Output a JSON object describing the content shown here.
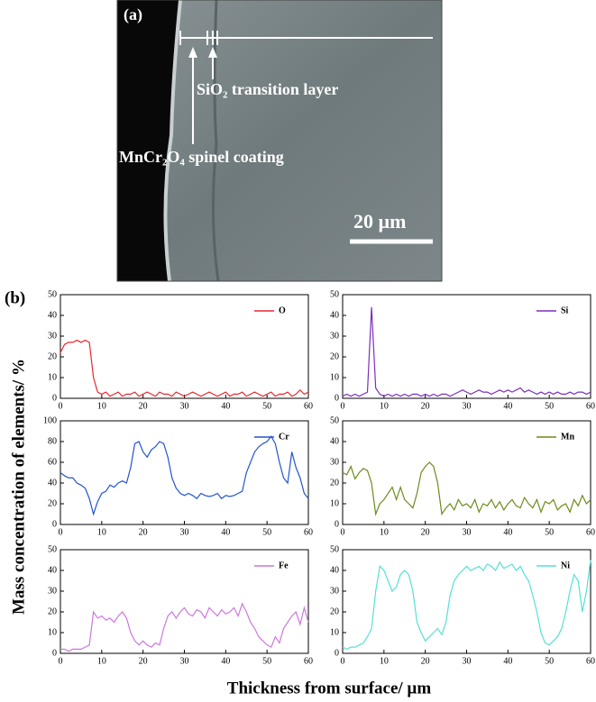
{
  "panel_a": {
    "label": "(a)",
    "layer_label": "SiO₂ transition layer",
    "coating_label": "MnCr₂O₄ spinel coating",
    "scale_bar": "20 µm"
  },
  "panel_b": {
    "label": "(b)",
    "ylabel": "Mass concentration of elements/ %",
    "xlabel": "Thickness from surface/ µm"
  },
  "chart_data": [
    {
      "type": "line",
      "legend": "upper right",
      "xlim": [
        0,
        60
      ],
      "xticks": [
        0,
        10,
        20,
        30,
        40,
        50,
        60
      ],
      "ylim": [
        0,
        50
      ],
      "yticks": [
        0,
        10,
        20,
        30,
        40,
        50
      ],
      "x": [
        0,
        1,
        2,
        3,
        4,
        5,
        6,
        7,
        8,
        9,
        10,
        11,
        12,
        13,
        14,
        15,
        16,
        17,
        18,
        19,
        20,
        21,
        22,
        23,
        24,
        25,
        26,
        27,
        28,
        29,
        30,
        31,
        32,
        33,
        34,
        35,
        36,
        37,
        38,
        39,
        40,
        41,
        42,
        43,
        44,
        45,
        46,
        47,
        48,
        49,
        50,
        51,
        52,
        53,
        54,
        55,
        56,
        57,
        58,
        59,
        60
      ],
      "series": [
        {
          "name": "O",
          "color": "#e8282e",
          "values": [
            22,
            26,
            27,
            27,
            28,
            27,
            28,
            27,
            10,
            3,
            2,
            3,
            1,
            2,
            3,
            1,
            2,
            2,
            3,
            1,
            2,
            3,
            2,
            1,
            3,
            2,
            2,
            1,
            3,
            2,
            1,
            2,
            3,
            2,
            1,
            2,
            3,
            2,
            1,
            2,
            3,
            1,
            2,
            2,
            3,
            1,
            2,
            3,
            2,
            1,
            2,
            3,
            1,
            2,
            2,
            3,
            1,
            2,
            4,
            2,
            3
          ]
        }
      ]
    },
    {
      "type": "line",
      "legend": "upper right",
      "xlim": [
        0,
        60
      ],
      "xticks": [
        0,
        10,
        20,
        30,
        40,
        50,
        60
      ],
      "ylim": [
        0,
        50
      ],
      "yticks": [
        0,
        10,
        20,
        30,
        40,
        50
      ],
      "x": [
        0,
        1,
        2,
        3,
        4,
        5,
        6,
        7,
        8,
        9,
        10,
        11,
        12,
        13,
        14,
        15,
        16,
        17,
        18,
        19,
        20,
        21,
        22,
        23,
        24,
        25,
        26,
        27,
        28,
        29,
        30,
        31,
        32,
        33,
        34,
        35,
        36,
        37,
        38,
        39,
        40,
        41,
        42,
        43,
        44,
        45,
        46,
        47,
        48,
        49,
        50,
        51,
        52,
        53,
        54,
        55,
        56,
        57,
        58,
        59,
        60
      ],
      "series": [
        {
          "name": "Si",
          "color": "#7b2fbf",
          "values": [
            1,
            2,
            1,
            2,
            1,
            2,
            3,
            44,
            5,
            2,
            1,
            2,
            1,
            2,
            1,
            2,
            1,
            2,
            2,
            1,
            2,
            1,
            2,
            1,
            2,
            2,
            1,
            2,
            3,
            4,
            3,
            2,
            3,
            4,
            3,
            3,
            2,
            3,
            4,
            3,
            4,
            3,
            4,
            5,
            3,
            4,
            3,
            2,
            3,
            2,
            3,
            2,
            3,
            2,
            2,
            3,
            2,
            3,
            3,
            2,
            3
          ]
        }
      ]
    },
    {
      "type": "line",
      "legend": "upper right",
      "xlim": [
        0,
        60
      ],
      "xticks": [
        0,
        10,
        20,
        30,
        40,
        50,
        60
      ],
      "ylim": [
        0,
        100
      ],
      "yticks": [
        0,
        20,
        40,
        60,
        80,
        100
      ],
      "x": [
        0,
        1,
        2,
        3,
        4,
        5,
        6,
        7,
        8,
        9,
        10,
        11,
        12,
        13,
        14,
        15,
        16,
        17,
        18,
        19,
        20,
        21,
        22,
        23,
        24,
        25,
        26,
        27,
        28,
        29,
        30,
        31,
        32,
        33,
        34,
        35,
        36,
        37,
        38,
        39,
        40,
        41,
        42,
        43,
        44,
        45,
        46,
        47,
        48,
        49,
        50,
        51,
        52,
        53,
        54,
        55,
        56,
        57,
        58,
        59,
        60
      ],
      "series": [
        {
          "name": "Cr",
          "color": "#2255cc",
          "values": [
            50,
            47,
            45,
            45,
            40,
            38,
            35,
            25,
            10,
            22,
            30,
            32,
            38,
            36,
            40,
            42,
            40,
            55,
            78,
            80,
            70,
            65,
            72,
            75,
            80,
            78,
            65,
            45,
            35,
            30,
            28,
            30,
            28,
            25,
            30,
            28,
            27,
            28,
            30,
            25,
            28,
            27,
            28,
            30,
            32,
            50,
            60,
            70,
            75,
            78,
            80,
            85,
            78,
            60,
            45,
            40,
            70,
            55,
            45,
            30,
            25
          ]
        }
      ]
    },
    {
      "type": "line",
      "legend": "upper right",
      "xlim": [
        0,
        60
      ],
      "xticks": [
        0,
        10,
        20,
        30,
        40,
        50,
        60
      ],
      "ylim": [
        0,
        50
      ],
      "yticks": [
        0,
        10,
        20,
        30,
        40,
        50
      ],
      "x": [
        0,
        1,
        2,
        3,
        4,
        5,
        6,
        7,
        8,
        9,
        10,
        11,
        12,
        13,
        14,
        15,
        16,
        17,
        18,
        19,
        20,
        21,
        22,
        23,
        24,
        25,
        26,
        27,
        28,
        29,
        30,
        31,
        32,
        33,
        34,
        35,
        36,
        37,
        38,
        39,
        40,
        41,
        42,
        43,
        44,
        45,
        46,
        47,
        48,
        49,
        50,
        51,
        52,
        53,
        54,
        55,
        56,
        57,
        58,
        59,
        60
      ],
      "series": [
        {
          "name": "Mn",
          "color": "#6b8c1a",
          "values": [
            25,
            24,
            28,
            22,
            25,
            27,
            26,
            20,
            5,
            10,
            12,
            15,
            18,
            12,
            18,
            12,
            10,
            8,
            15,
            25,
            28,
            30,
            28,
            20,
            5,
            8,
            10,
            7,
            12,
            9,
            10,
            8,
            12,
            6,
            10,
            9,
            12,
            8,
            11,
            7,
            10,
            12,
            9,
            8,
            13,
            10,
            8,
            12,
            6,
            11,
            10,
            12,
            7,
            9,
            10,
            6,
            12,
            9,
            14,
            10,
            12
          ]
        }
      ]
    },
    {
      "type": "line",
      "legend": "upper right",
      "xlim": [
        0,
        60
      ],
      "xticks": [
        0,
        10,
        20,
        30,
        40,
        50,
        60
      ],
      "ylim": [
        0,
        50
      ],
      "yticks": [
        0,
        10,
        20,
        30,
        40,
        50
      ],
      "x": [
        0,
        1,
        2,
        3,
        4,
        5,
        6,
        7,
        8,
        9,
        10,
        11,
        12,
        13,
        14,
        15,
        16,
        17,
        18,
        19,
        20,
        21,
        22,
        23,
        24,
        25,
        26,
        27,
        28,
        29,
        30,
        31,
        32,
        33,
        34,
        35,
        36,
        37,
        38,
        39,
        40,
        41,
        42,
        43,
        44,
        45,
        46,
        47,
        48,
        49,
        50,
        51,
        52,
        53,
        54,
        55,
        56,
        57,
        58,
        59,
        60
      ],
      "series": [
        {
          "name": "Fe",
          "color": "#cc77dd",
          "values": [
            2,
            2,
            1,
            2,
            2,
            2,
            3,
            4,
            20,
            17,
            18,
            16,
            17,
            15,
            18,
            20,
            17,
            10,
            6,
            4,
            6,
            4,
            3,
            5,
            4,
            12,
            18,
            20,
            17,
            20,
            22,
            19,
            18,
            21,
            20,
            17,
            22,
            20,
            18,
            21,
            19,
            20,
            22,
            18,
            24,
            20,
            15,
            12,
            8,
            6,
            4,
            3,
            8,
            5,
            12,
            15,
            18,
            20,
            14,
            22,
            15
          ]
        }
      ]
    },
    {
      "type": "line",
      "legend": "upper right",
      "xlim": [
        0,
        60
      ],
      "xticks": [
        0,
        10,
        20,
        30,
        40,
        50,
        60
      ],
      "ylim": [
        0,
        50
      ],
      "yticks": [
        0,
        10,
        20,
        30,
        40,
        50
      ],
      "x": [
        0,
        1,
        2,
        3,
        4,
        5,
        6,
        7,
        8,
        9,
        10,
        11,
        12,
        13,
        14,
        15,
        16,
        17,
        18,
        19,
        20,
        21,
        22,
        23,
        24,
        25,
        26,
        27,
        28,
        29,
        30,
        31,
        32,
        33,
        34,
        35,
        36,
        37,
        38,
        39,
        40,
        41,
        42,
        43,
        44,
        45,
        46,
        47,
        48,
        49,
        50,
        51,
        52,
        53,
        54,
        55,
        56,
        57,
        58,
        59,
        60
      ],
      "series": [
        {
          "name": "Ni",
          "color": "#55e0d6",
          "values": [
            3,
            2,
            3,
            3,
            4,
            5,
            8,
            12,
            30,
            42,
            40,
            35,
            30,
            32,
            38,
            40,
            38,
            30,
            15,
            10,
            6,
            8,
            10,
            12,
            9,
            15,
            28,
            35,
            38,
            40,
            42,
            40,
            41,
            42,
            40,
            43,
            42,
            40,
            44,
            41,
            42,
            43,
            40,
            42,
            38,
            35,
            28,
            20,
            10,
            5,
            4,
            6,
            8,
            12,
            20,
            30,
            38,
            35,
            20,
            30,
            45
          ]
        }
      ]
    }
  ]
}
